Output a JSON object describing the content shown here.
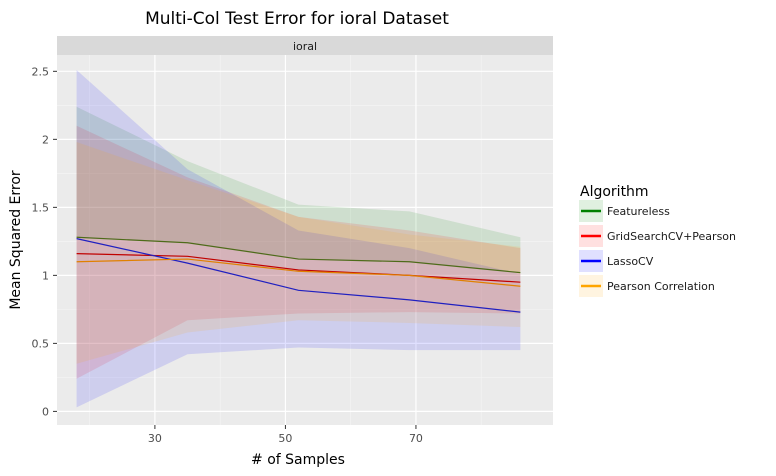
{
  "chart_data": {
    "type": "line",
    "title": "Multi-Col Test Error for ioral Dataset",
    "facet": "ioral",
    "xlabel": "# of Samples",
    "ylabel": "Mean Squared Error",
    "xlim": [
      15,
      91
    ],
    "ylim": [
      -0.1,
      2.62
    ],
    "x_ticks": [
      30,
      50,
      70
    ],
    "y_ticks": [
      0,
      0.5,
      1,
      1.5,
      2,
      2.5
    ],
    "y_tick_labels": [
      "0",
      "0.5",
      "1",
      "1.5",
      "2",
      "2.5"
    ],
    "grid": true,
    "legend": {
      "title": "Algorithm",
      "placement": "right"
    },
    "x": [
      18,
      35,
      52,
      69,
      86
    ],
    "series": [
      {
        "name": "Featureless",
        "color": "#008000",
        "mean": [
          1.28,
          1.24,
          1.12,
          1.1,
          1.02
        ],
        "lower": [
          1.28,
          1.24,
          1.12,
          1.1,
          1.02
        ],
        "upper": [
          2.24,
          1.84,
          1.52,
          1.47,
          1.28
        ]
      },
      {
        "name": "GridSearchCV+Pearson",
        "color": "#ff0000",
        "mean": [
          1.16,
          1.14,
          1.04,
          1.0,
          0.95
        ],
        "lower": [
          0.24,
          0.67,
          0.72,
          0.73,
          0.72
        ],
        "upper": [
          2.1,
          1.72,
          1.43,
          1.33,
          1.2
        ]
      },
      {
        "name": "LassoCV",
        "color": "#0000ff",
        "mean": [
          1.27,
          1.09,
          0.89,
          0.82,
          0.73
        ],
        "lower": [
          0.03,
          0.42,
          0.47,
          0.45,
          0.45
        ],
        "upper": [
          2.51,
          1.78,
          1.33,
          1.2,
          1.01
        ]
      },
      {
        "name": "Pearson Correlation",
        "color": "#ffa500",
        "mean": [
          1.1,
          1.12,
          1.03,
          1.0,
          0.92
        ],
        "lower": [
          0.35,
          0.58,
          0.67,
          0.65,
          0.62
        ],
        "upper": [
          1.98,
          1.7,
          1.43,
          1.3,
          1.21
        ]
      }
    ],
    "bands_stroke": {
      "Featureless": "#4e6b1a",
      "GridSearchCV+Pearson": "#c00000",
      "LassoCV": "#2020c0",
      "Pearson Correlation": "#e08000"
    }
  }
}
